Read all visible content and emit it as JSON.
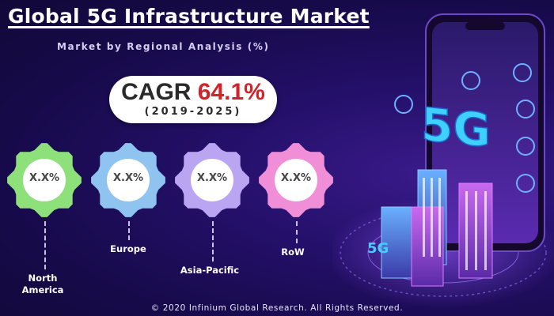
{
  "header": {
    "title": "Global 5G Infrastructure Market",
    "subtitle": "Market by Regional Analysis (%)"
  },
  "cagr": {
    "label": "CAGR",
    "value": "64.1%",
    "period": "(2019-2025)"
  },
  "colors": {
    "north_america": "#8ee07a",
    "europe": "#8fc3f0",
    "asia_pacific": "#b9a5f2",
    "row": "#f08fd8",
    "accent_red": "#d2222a"
  },
  "chart_data": {
    "type": "table",
    "categories": [
      "North America",
      "Europe",
      "Asia-Pacific",
      "RoW"
    ],
    "values": [
      "X.X%",
      "X.X%",
      "X.X%",
      "X.X%"
    ]
  },
  "illustration": {
    "badge_big": "5G",
    "badge_small": "5G"
  },
  "footer": {
    "copyright": "© 2020 Infinium Global Research. All Rights Reserved."
  }
}
